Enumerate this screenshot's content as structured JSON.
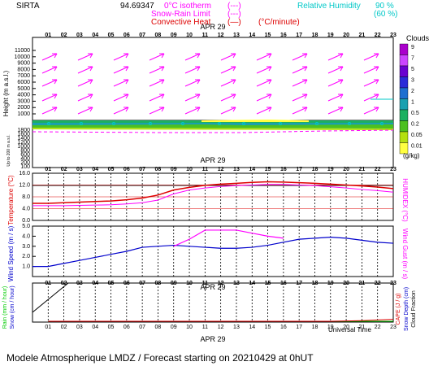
{
  "header": {
    "site": "SIRTA",
    "coords": "94.69347",
    "legend": [
      {
        "label": "0°C isotherm",
        "sample": "(---)",
        "color": "#ff00ff"
      },
      {
        "label": "Snow-Rain Limit",
        "sample": "(---)",
        "color": "#ff00ff"
      },
      {
        "label": "Convective Heat",
        "sample": "(—)",
        "unit": "(°C/minute)",
        "color": "#dd0000"
      },
      {
        "label": "Relative Humidity",
        "sample": "90 %",
        "color": "#00c8c8"
      },
      {
        "label": "",
        "sample": "(60 %)",
        "color": "#00c8c8"
      }
    ]
  },
  "colors": {
    "temperature": "#dd0000",
    "humidex": "#ff00ff",
    "wind_speed": "#0000cc",
    "wind_gust": "#ff00ff",
    "rain": "#00cc00",
    "snow": "#0000cc",
    "cape": "#dd0000",
    "wind_arrow": "#ff00ff",
    "isotherm": "#ff00ff",
    "rh": "#00c8c8"
  },
  "x_ticks": [
    "01",
    "02",
    "03",
    "04",
    "05",
    "06",
    "07",
    "08",
    "09",
    "10",
    "11",
    "12",
    "13",
    "14",
    "15",
    "16",
    "17",
    "18",
    "19",
    "20",
    "21",
    "22",
    "23"
  ],
  "date_label": "APR 29",
  "panel1": {
    "ylabel": "Height (m a.s.l.)",
    "ylabel2": "Up to 200 m a.s.l.",
    "yticks_upper": [
      "11000",
      "10000",
      "9000",
      "8000",
      "7000",
      "6000",
      "5000",
      "4000",
      "3000",
      "2000",
      "1000"
    ],
    "yticks_lower": [
      "1800",
      "1600",
      "1400",
      "1200",
      "1000",
      "800",
      "600",
      "400",
      "200",
      "100"
    ],
    "colorbar": {
      "title": "Clouds",
      "unit": "(g/kg)",
      "levels": [
        "9",
        "7",
        "5",
        "3",
        "2",
        "1",
        "0.5",
        "0.2",
        "0.05",
        "0.01"
      ],
      "colors": [
        "#aa00cc",
        "#cc44ff",
        "#6a00d0",
        "#2b2bd8",
        "#1e6fd0",
        "#1aa0b0",
        "#1cb060",
        "#4cc020",
        "#b4e010",
        "#ffff40"
      ]
    }
  },
  "panel2": {
    "left_label": "Temperature (°C)",
    "right_label": "HUMIDEX (°C)",
    "yticks": [
      "16.0",
      "12.0",
      "8.0",
      "4.0",
      "0.0"
    ]
  },
  "panel3": {
    "left_label": "Wind Speed (m / s)",
    "right_label": "Wind Gust (m / s)",
    "yticks": [
      "5.0",
      "4.0",
      "3.0",
      "2.0",
      "1.0"
    ]
  },
  "panel4": {
    "left_label1": "Rain (mm / hour)",
    "left_label2": "Snow (cm / hour)",
    "right_label1": "CAPE (J / g)",
    "right_label2": "Snow Depth (cm)",
    "right_label3": "Cloud Fraction",
    "xlabel": "Universal Time"
  },
  "footer": "Modele Atmospherique LMDZ / Forecast starting on 20210429 at 0hUT",
  "chart_data": [
    {
      "type": "line",
      "title": "",
      "xlabel": "",
      "ylabel": "Temperature (°C)",
      "x": [
        1,
        2,
        3,
        4,
        5,
        6,
        7,
        8,
        9,
        10,
        11,
        12,
        13,
        14,
        15,
        16,
        17,
        18,
        19,
        20,
        21,
        22,
        23
      ],
      "ylim": [
        0,
        16
      ],
      "series": [
        {
          "name": "Temperature",
          "values": [
            5.8,
            6.0,
            6.2,
            6.4,
            6.6,
            7.0,
            7.6,
            8.6,
            10.3,
            11.2,
            11.9,
            12.3,
            12.6,
            12.9,
            13.1,
            13.0,
            12.8,
            12.6,
            12.3,
            12.0,
            11.7,
            11.3,
            10.8
          ]
        },
        {
          "name": "HUMIDEX",
          "values": [
            5.0,
            5.0,
            5.1,
            5.2,
            5.3,
            5.6,
            6.0,
            6.9,
            9.0,
            10.3,
            11.0,
            11.5,
            11.8,
            12.0,
            12.2,
            12.2,
            12.0,
            11.8,
            11.4,
            11.0,
            10.5,
            10.1,
            9.6
          ]
        }
      ]
    },
    {
      "type": "line",
      "title": "",
      "xlabel": "",
      "ylabel": "Wind Speed (m / s)",
      "x": [
        1,
        2,
        3,
        4,
        5,
        6,
        7,
        8,
        9,
        10,
        11,
        12,
        13,
        14,
        15,
        16,
        17,
        18,
        19,
        20,
        21,
        22,
        23
      ],
      "ylim": [
        0,
        5
      ],
      "series": [
        {
          "name": "Wind Speed",
          "values": [
            1.0,
            1.3,
            1.6,
            1.9,
            2.2,
            2.5,
            2.9,
            3.0,
            3.1,
            3.0,
            2.9,
            2.8,
            2.8,
            2.9,
            3.1,
            3.4,
            3.7,
            3.8,
            3.9,
            3.8,
            3.6,
            3.4,
            3.3
          ]
        },
        {
          "name": "Wind Gust",
          "values": [
            null,
            null,
            null,
            null,
            null,
            null,
            null,
            null,
            3.0,
            3.7,
            4.6,
            4.6,
            4.6,
            4.3,
            4.0,
            3.8,
            null,
            null,
            null,
            null,
            null,
            null,
            null
          ]
        }
      ]
    },
    {
      "type": "line",
      "title": "",
      "xlabel": "Universal Time",
      "ylabel": "Rain (mm / hour)",
      "x": [
        1,
        2,
        3,
        4,
        5,
        6,
        7,
        8,
        9,
        10,
        11,
        12,
        13,
        14,
        15,
        16,
        17,
        18,
        19,
        20,
        21,
        22,
        23
      ],
      "series": [
        {
          "name": "Rain",
          "values": [
            0,
            0,
            0,
            0,
            0,
            0,
            0,
            0,
            0,
            0,
            0,
            0,
            0,
            0,
            0,
            0,
            0,
            0,
            0,
            0,
            0,
            0,
            0
          ]
        },
        {
          "name": "CAPE",
          "values": [
            0,
            0,
            0,
            0,
            0,
            0,
            0,
            0,
            0,
            0,
            0,
            0,
            0,
            0,
            0,
            0,
            0,
            0,
            0,
            0.01,
            0.02,
            0.04,
            0.06
          ]
        }
      ]
    }
  ]
}
